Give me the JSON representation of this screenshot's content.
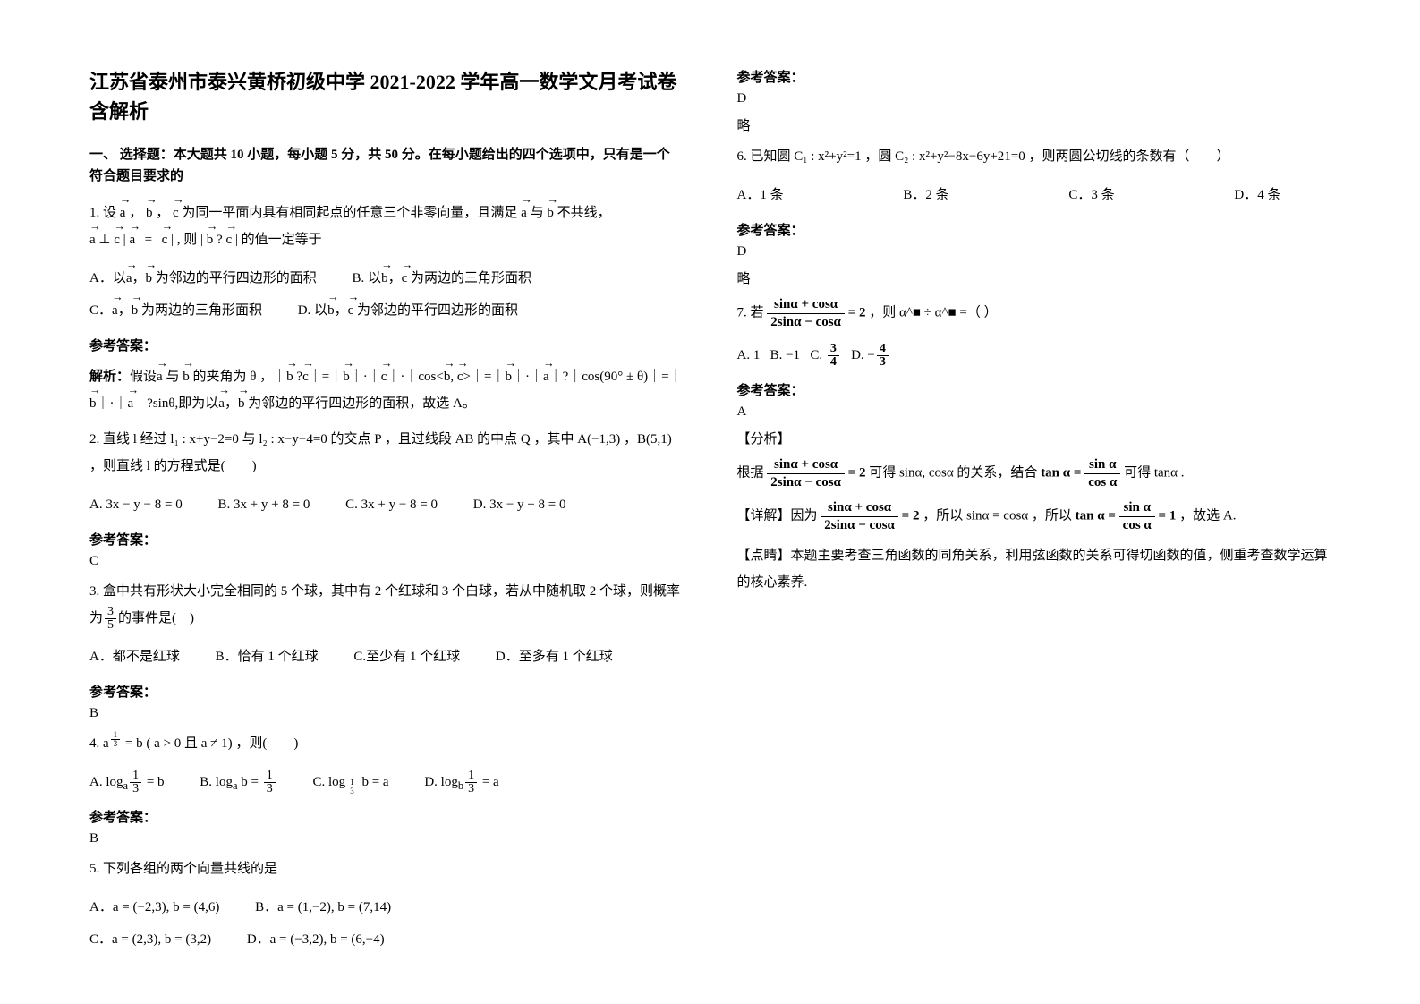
{
  "title": "江苏省泰州市泰兴黄桥初级中学 2021-2022 学年高一数学文月考试卷含解析",
  "section1": "一、 选择题：本大题共 10 小题，每小题 5 分，共 50 分。在每小题给出的四个选项中，只有是一个符合题目要求的",
  "q1": {
    "stem_a": "1. 设",
    "stem_b": " 为同一平面内具有相同起点的任意三个非零向量，且满足",
    "stem_c": " 不共线，",
    "stem_d": "  | ",
    "stem_e": " | = | ",
    "stem_f": " | , 则 | ",
    "stem_g": "  ?",
    "stem_h": " | 的值一定等于",
    "optA": "A．以  ，  为邻边的平行四边形的面积",
    "optB": "B. 以  ，  为两边的三角形面积",
    "optC": "C．  ，  为两边的三角形面积",
    "optD": "D. 以  ，  为邻边的平行四边形的面积",
    "ans_label": "参考答案：",
    "analysis_label": "解析：",
    "analysis": "假设  与  的夹角为 θ ，｜  ?  ｜=｜  ｜ • ｜  ｜ • ｜cos<  ,  >｜=｜  ｜ • ｜  ｜?｜cos(90° ± θ)｜=｜  ｜ • ｜  ｜?sinθ,即为以  ，  为邻边的平行四边形的面积，故选 A。"
  },
  "q2": {
    "stem": "2. 直线 l 经过 l₁ : x+y−2=0 与 l₂ : x−y−4=0 的交点 P ，且过线段 AB 的中点 Q ，其中 A(−1,3) ，B(5,1) ，则直线 l 的方程式是(　　)",
    "optA": "A. 3x − y − 8 = 0",
    "optB": "B. 3x + y + 8 = 0",
    "optC": "C. 3x + y − 8 = 0",
    "optD": "D. 3x − y + 8 = 0",
    "ans_label": "参考答案：",
    "ans": "C"
  },
  "q3": {
    "stem": "3. 盒中共有形状大小完全相同的 5 个球，其中有 2 个红球和 3 个白球，若从中随机取 2 个球，则概率为  的事件是(　)",
    "optA": "A．都不是红球",
    "optB": "B．恰有 1 个红球",
    "optC": "C.至少有 1 个红球",
    "optD": "D．至多有 1 个红球",
    "ans_label": "参考答案：",
    "ans": "B"
  },
  "q4": {
    "stem": "4.  a^{⅓} = b ( a > 0 且 a ≠ 1) ，则(　　)",
    "ans_label": "参考答案：",
    "ans": "B"
  },
  "q5": {
    "stem": "5. 下列各组的两个向量共线的是",
    "optA": "A．a = (−2,3), b = (4,6)",
    "optB": "B．a = (1,−2), b = (7,14)",
    "optC": "C．a = (2,3), b = (3,2)",
    "optD": "D．a = (−3,2), b = (6,−4)",
    "ans_label": "参考答案：",
    "ans": "D",
    "extra": "略"
  },
  "q6": {
    "stem": "6. 已知圆 C₁ : x²+y²=1 ，圆 C₂ : x²+y²−8x−6y+21=0 ，则两圆公切线的条数有（　　）",
    "optA": "A．1 条",
    "optB": "B．2 条",
    "optC": "C．3 条",
    "optD": "D．4 条",
    "ans_label": "参考答案：",
    "ans": "D",
    "extra": "略"
  },
  "q7": {
    "stem_pre": "7. 若 ",
    "stem_post": " ，则 α^■ ÷ α^■ =（  ）",
    "optA": "A. 1",
    "optB": "B. −1",
    "optC_pre": "C. ",
    "optD_pre": "D. ",
    "ans_label": "参考答案：",
    "ans": "A",
    "analysis_label": "【分析】",
    "analysis_1_a": "根据 ",
    "analysis_1_b": " 可得 sinα, cosα 的关系，结合 ",
    "analysis_1_c": " 可得 tanα .",
    "detail_label": "【详解】因为 ",
    "detail_b": " ，所以 sinα = cosα ，所以 ",
    "detail_c": " ，故选 A.",
    "point": "【点睛】本题主要考查三角函数的同角关系，利用弦函数的关系可得切函数的值，侧重考查数学运算的核心素养."
  }
}
